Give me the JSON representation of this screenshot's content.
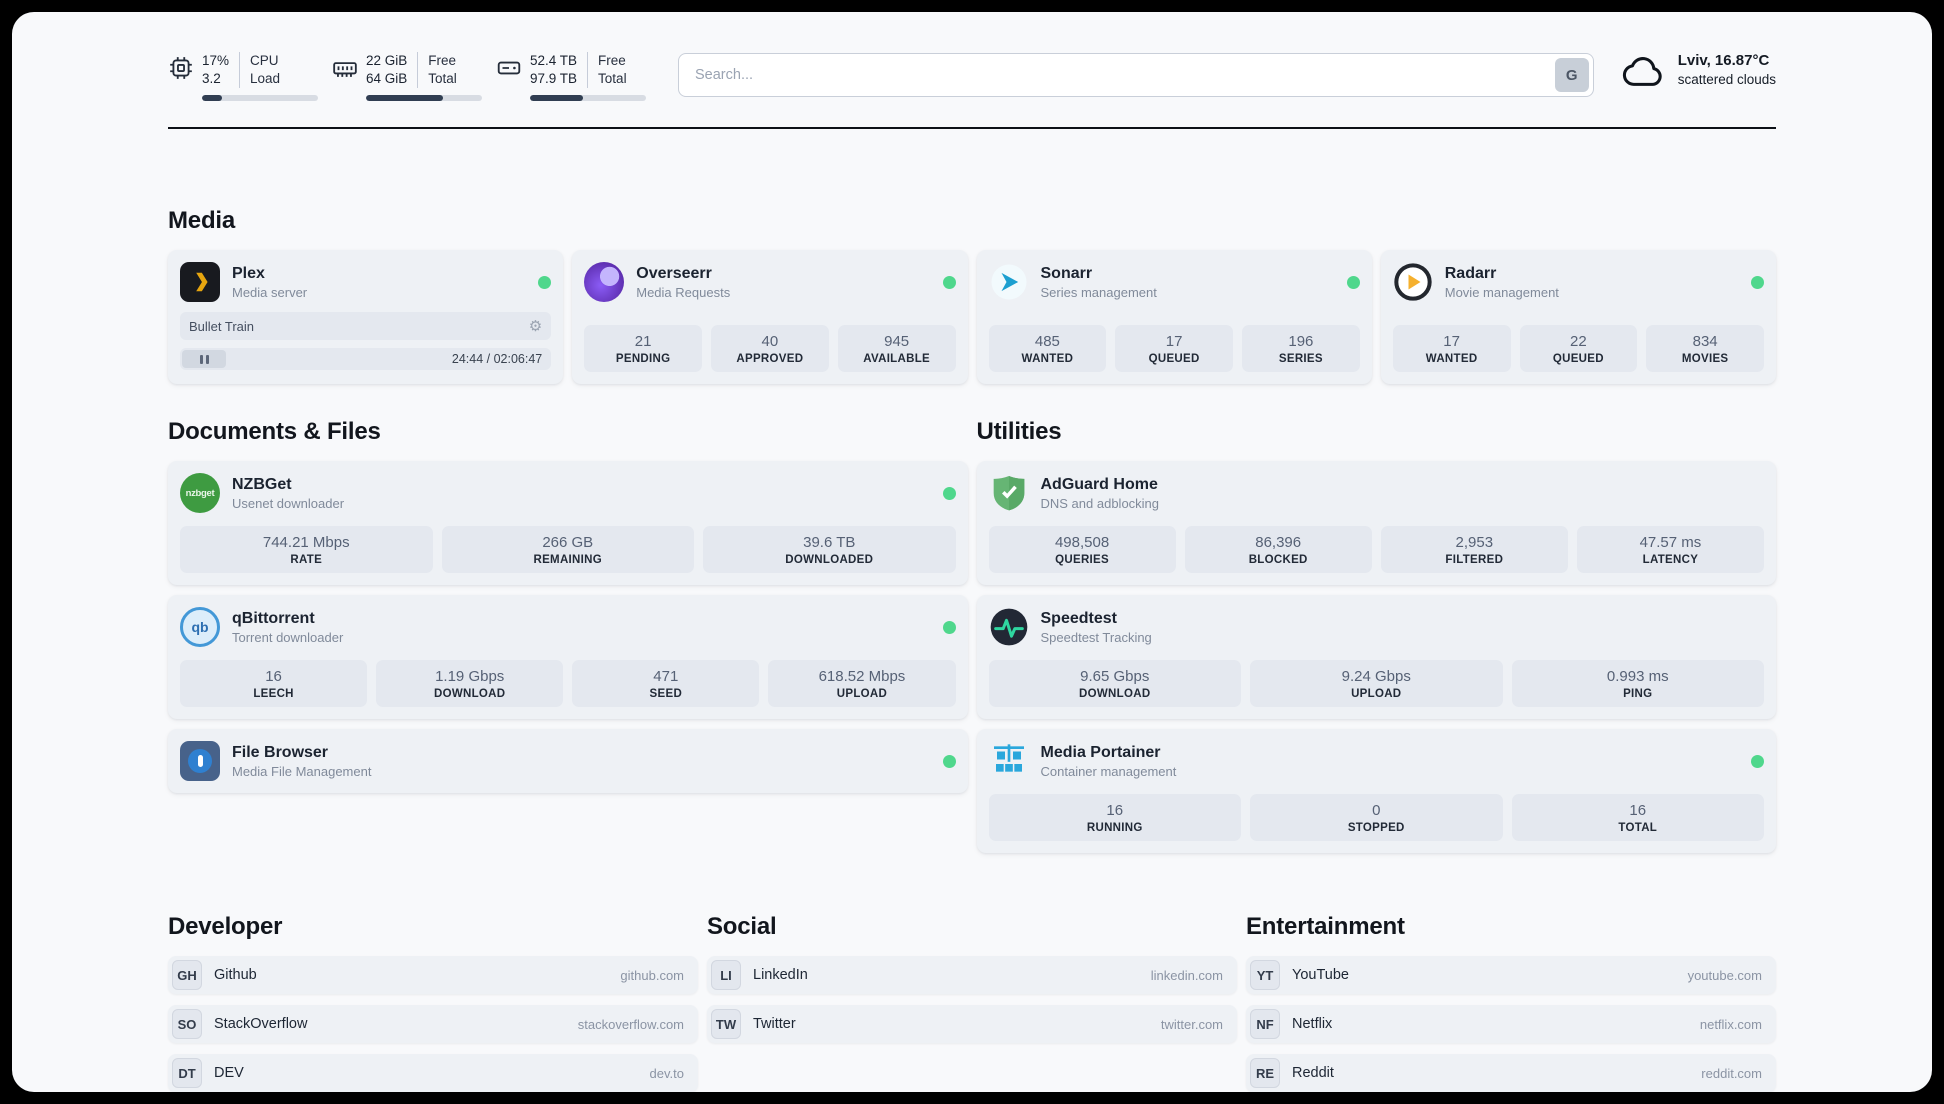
{
  "topbar": {
    "cpu": {
      "value_top": "17%",
      "value_bottom": "3.2",
      "label_top": "CPU",
      "label_bottom": "Load",
      "progress": 17
    },
    "ram": {
      "value_top": "22 GiB",
      "value_bottom": "64 GiB",
      "label_top": "Free",
      "label_bottom": "Total",
      "progress": 66
    },
    "disk": {
      "value_top": "52.4 TB",
      "value_bottom": "97.9 TB",
      "label_top": "Free",
      "label_bottom": "Total",
      "progress": 46
    },
    "search": {
      "placeholder": "Search...",
      "button_label": "G"
    },
    "weather": {
      "location": "Lviv, 16.87°C",
      "condition": "scattered clouds"
    }
  },
  "sections": {
    "media": {
      "title": "Media",
      "plex": {
        "name": "Plex",
        "subtitle": "Media server",
        "now_playing": "Bullet Train",
        "time": "24:44 / 02:06:47"
      },
      "overseerr": {
        "name": "Overseerr",
        "subtitle": "Media Requests",
        "stats": [
          {
            "value": "21",
            "label": "PENDING"
          },
          {
            "value": "40",
            "label": "APPROVED"
          },
          {
            "value": "945",
            "label": "AVAILABLE"
          }
        ]
      },
      "sonarr": {
        "name": "Sonarr",
        "subtitle": "Series management",
        "stats": [
          {
            "value": "485",
            "label": "WANTED"
          },
          {
            "value": "17",
            "label": "QUEUED"
          },
          {
            "value": "196",
            "label": "SERIES"
          }
        ]
      },
      "radarr": {
        "name": "Radarr",
        "subtitle": "Movie management",
        "stats": [
          {
            "value": "17",
            "label": "WANTED"
          },
          {
            "value": "22",
            "label": "QUEUED"
          },
          {
            "value": "834",
            "label": "MOVIES"
          }
        ]
      }
    },
    "documents": {
      "title": "Documents & Files",
      "nzbget": {
        "name": "NZBGet",
        "subtitle": "Usenet downloader",
        "icon_text": "nzbget",
        "stats": [
          {
            "value": "744.21 Mbps",
            "label": "RATE"
          },
          {
            "value": "266 GB",
            "label": "REMAINING"
          },
          {
            "value": "39.6 TB",
            "label": "DOWNLOADED"
          }
        ]
      },
      "qbittorrent": {
        "name": "qBittorrent",
        "subtitle": "Torrent downloader",
        "icon_text": "qb",
        "stats": [
          {
            "value": "16",
            "label": "LEECH"
          },
          {
            "value": "1.19 Gbps",
            "label": "DOWNLOAD"
          },
          {
            "value": "471",
            "label": "SEED"
          },
          {
            "value": "618.52 Mbps",
            "label": "UPLOAD"
          }
        ]
      },
      "filebrowser": {
        "name": "File Browser",
        "subtitle": "Media File Management"
      }
    },
    "utilities": {
      "title": "Utilities",
      "adguard": {
        "name": "AdGuard Home",
        "subtitle": "DNS and adblocking",
        "stats": [
          {
            "value": "498,508",
            "label": "QUERIES"
          },
          {
            "value": "86,396",
            "label": "BLOCKED"
          },
          {
            "value": "2,953",
            "label": "FILTERED"
          },
          {
            "value": "47.57 ms",
            "label": "LATENCY"
          }
        ]
      },
      "speedtest": {
        "name": "Speedtest",
        "subtitle": "Speedtest Tracking",
        "stats": [
          {
            "value": "9.65 Gbps",
            "label": "DOWNLOAD"
          },
          {
            "value": "9.24 Gbps",
            "label": "UPLOAD"
          },
          {
            "value": "0.993 ms",
            "label": "PING"
          }
        ]
      },
      "portainer": {
        "name": "Media Portainer",
        "subtitle": "Container management",
        "stats": [
          {
            "value": "16",
            "label": "RUNNING"
          },
          {
            "value": "0",
            "label": "STOPPED"
          },
          {
            "value": "16",
            "label": "TOTAL"
          }
        ]
      }
    },
    "developer": {
      "title": "Developer",
      "links": [
        {
          "abbr": "GH",
          "name": "Github",
          "url": "github.com"
        },
        {
          "abbr": "SO",
          "name": "StackOverflow",
          "url": "stackoverflow.com"
        },
        {
          "abbr": "DT",
          "name": "DEV",
          "url": "dev.to"
        }
      ]
    },
    "social": {
      "title": "Social",
      "links": [
        {
          "abbr": "LI",
          "name": "LinkedIn",
          "url": "linkedin.com"
        },
        {
          "abbr": "TW",
          "name": "Twitter",
          "url": "twitter.com"
        }
      ]
    },
    "entertainment": {
      "title": "Entertainment",
      "links": [
        {
          "abbr": "YT",
          "name": "YouTube",
          "url": "youtube.com"
        },
        {
          "abbr": "NF",
          "name": "Netflix",
          "url": "netflix.com"
        },
        {
          "abbr": "RE",
          "name": "Reddit",
          "url": "reddit.com"
        }
      ]
    }
  },
  "colors": {
    "status_online": "#4fd78c",
    "accent_plex": "#e6a50f",
    "accent_overseerr": "#6d28d9",
    "accent_sonarr": "#1c9fd0",
    "accent_radarr": "#f5b02e",
    "accent_nzbget": "#3e9b41",
    "accent_qbittorrent": "#2d6fb2",
    "accent_adguard": "#66b574",
    "accent_speedtest": "#2fd6a0",
    "accent_portainer": "#2aa7dc"
  }
}
